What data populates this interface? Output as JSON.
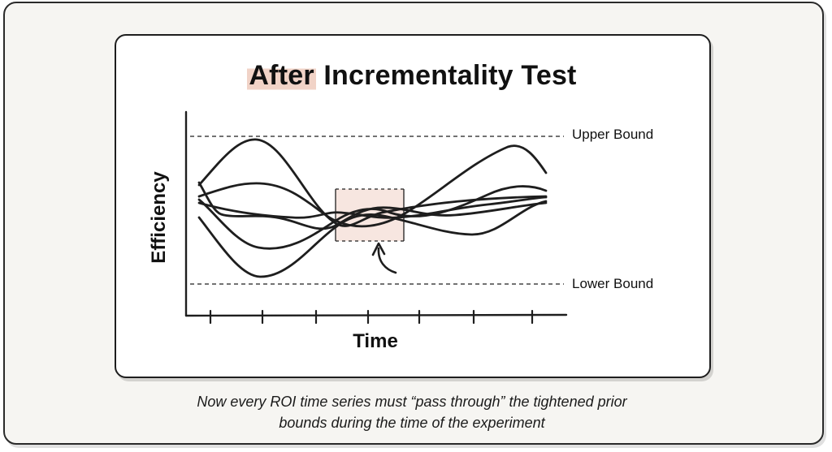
{
  "title": {
    "highlight": "After",
    "rest": " Incrementality Test"
  },
  "diagram": {
    "y_axis_label": "Efficiency",
    "x_axis_label": "Time",
    "upper_bound_label": "Upper Bound",
    "lower_bound_label": "Lower Bound",
    "series_count": 6,
    "x_tick_count": 7
  },
  "caption": {
    "line1": "Now every ROI time series must “pass through” the tightened prior",
    "line2": "bounds during the time of the experiment"
  },
  "colors": {
    "highlight": "#f1d3c7",
    "window_fill": "#f7e6e0",
    "ink": "#1e1e1e"
  }
}
